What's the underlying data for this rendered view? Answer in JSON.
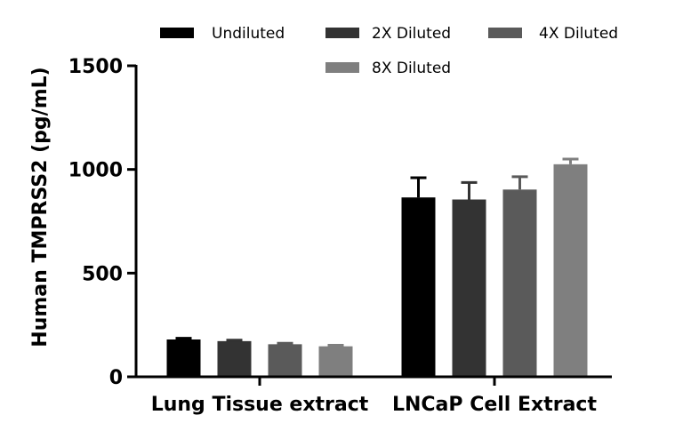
{
  "chart_data": {
    "type": "bar",
    "ylabel": "Human TMPRSS2 (pg/mL)",
    "xlabel": "",
    "ylim": [
      0,
      1500
    ],
    "yticks": [
      "0",
      "500",
      "1000",
      "1500"
    ],
    "categories": [
      "Lung Tissue extract",
      "LNCaP Cell Extract"
    ],
    "error_bars": "upper only",
    "legend_position": "top",
    "series": [
      {
        "name": "Undiluted",
        "color": "#000000",
        "values": [
          180,
          865
        ],
        "errors": [
          6,
          95
        ]
      },
      {
        "name": "2X Diluted",
        "color": "#333333",
        "values": [
          172,
          855
        ],
        "errors": [
          5,
          82
        ]
      },
      {
        "name": "4X Diluted",
        "color": "#5a5a5a",
        "values": [
          157,
          903
        ],
        "errors": [
          5,
          62
        ]
      },
      {
        "name": "8X Diluted",
        "color": "#7f7f7f",
        "values": [
          147,
          1025
        ],
        "errors": [
          5,
          25
        ]
      }
    ]
  }
}
